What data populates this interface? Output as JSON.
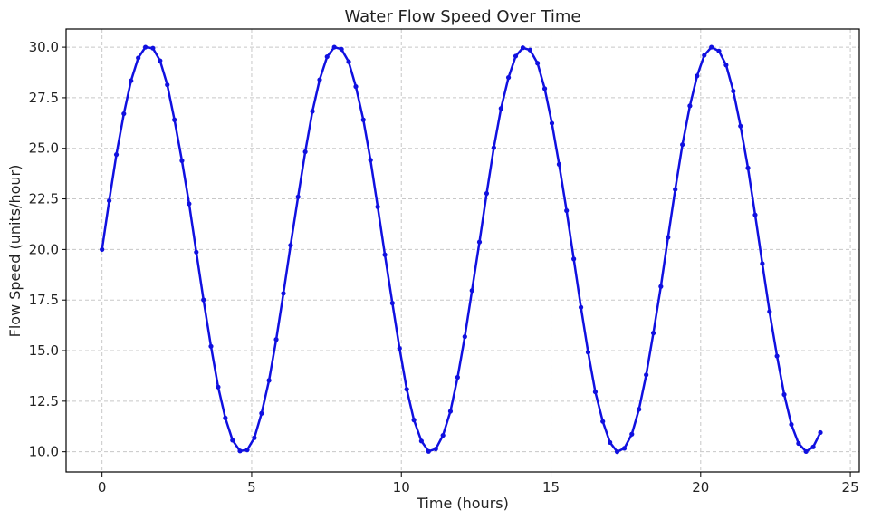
{
  "chart_data": {
    "type": "line",
    "title": "Water Flow Speed Over Time",
    "xlabel": "Time (hours)",
    "ylabel": "Flow Speed (units/hour)",
    "xlim": [
      -1.2,
      25.3
    ],
    "ylim": [
      9.0,
      30.9
    ],
    "xticks": [
      0,
      5,
      10,
      15,
      20,
      25
    ],
    "yticks": [
      10.0,
      12.5,
      15.0,
      17.5,
      20.0,
      22.5,
      25.0,
      27.5,
      30.0
    ],
    "grid": true,
    "colors": {
      "series": "#1010e0"
    },
    "series": [
      {
        "x": [
          0.0,
          0.24,
          0.48,
          0.73,
          0.97,
          1.21,
          1.45,
          1.7,
          1.94,
          2.18,
          2.42,
          2.67,
          2.91,
          3.15,
          3.39,
          3.64,
          3.88,
          4.12,
          4.36,
          4.61,
          4.85,
          5.09,
          5.33,
          5.58,
          5.82,
          6.06,
          6.3,
          6.55,
          6.79,
          7.03,
          7.27,
          7.52,
          7.76,
          8.0,
          8.24,
          8.48,
          8.73,
          8.97,
          9.21,
          9.45,
          9.7,
          9.94,
          10.18,
          10.42,
          10.67,
          10.91,
          11.15,
          11.39,
          11.64,
          11.88,
          12.12,
          12.36,
          12.61,
          12.85,
          13.09,
          13.33,
          13.58,
          13.82,
          14.06,
          14.3,
          14.55,
          14.79,
          15.03,
          15.27,
          15.52,
          15.76,
          16.0,
          16.24,
          16.48,
          16.73,
          16.97,
          17.21,
          17.45,
          17.7,
          17.94,
          18.18,
          18.42,
          18.67,
          18.91,
          19.15,
          19.39,
          19.64,
          19.88,
          20.12,
          20.36,
          20.61,
          20.85,
          21.09,
          21.33,
          21.58,
          21.82,
          22.06,
          22.3,
          22.55,
          22.79,
          23.03,
          23.27,
          23.52,
          23.76,
          24.0
        ],
        "y": [
          20.0,
          22.41,
          24.69,
          26.71,
          28.34,
          29.47,
          30.0,
          29.95,
          29.33,
          28.14,
          26.41,
          24.39,
          22.26,
          19.87,
          17.51,
          15.21,
          13.2,
          11.67,
          10.57,
          10.04,
          10.09,
          10.69,
          11.9,
          13.53,
          15.55,
          17.83,
          20.21,
          22.6,
          24.83,
          26.83,
          28.39,
          29.53,
          30.0,
          29.9,
          29.28,
          28.05,
          26.41,
          24.42,
          22.11,
          19.74,
          17.35,
          15.11,
          13.09,
          11.57,
          10.53,
          10.02,
          10.14,
          10.81,
          12.0,
          13.68,
          15.69,
          17.97,
          20.37,
          22.77,
          25.03,
          26.97,
          28.5,
          29.56,
          29.97,
          29.86,
          29.21,
          27.95,
          26.24,
          24.21,
          21.92,
          19.53,
          17.14,
          14.92,
          12.96,
          11.5,
          10.46,
          10.0,
          10.17,
          10.87,
          12.1,
          13.8,
          15.87,
          18.17,
          20.6,
          22.97,
          25.18,
          27.1,
          28.58,
          29.6,
          30.0,
          29.81,
          29.12,
          27.83,
          26.1,
          24.03,
          21.71,
          19.3,
          16.93,
          14.73,
          12.83,
          11.35,
          10.41,
          10.01,
          10.24,
          10.95
        ]
      }
    ]
  }
}
